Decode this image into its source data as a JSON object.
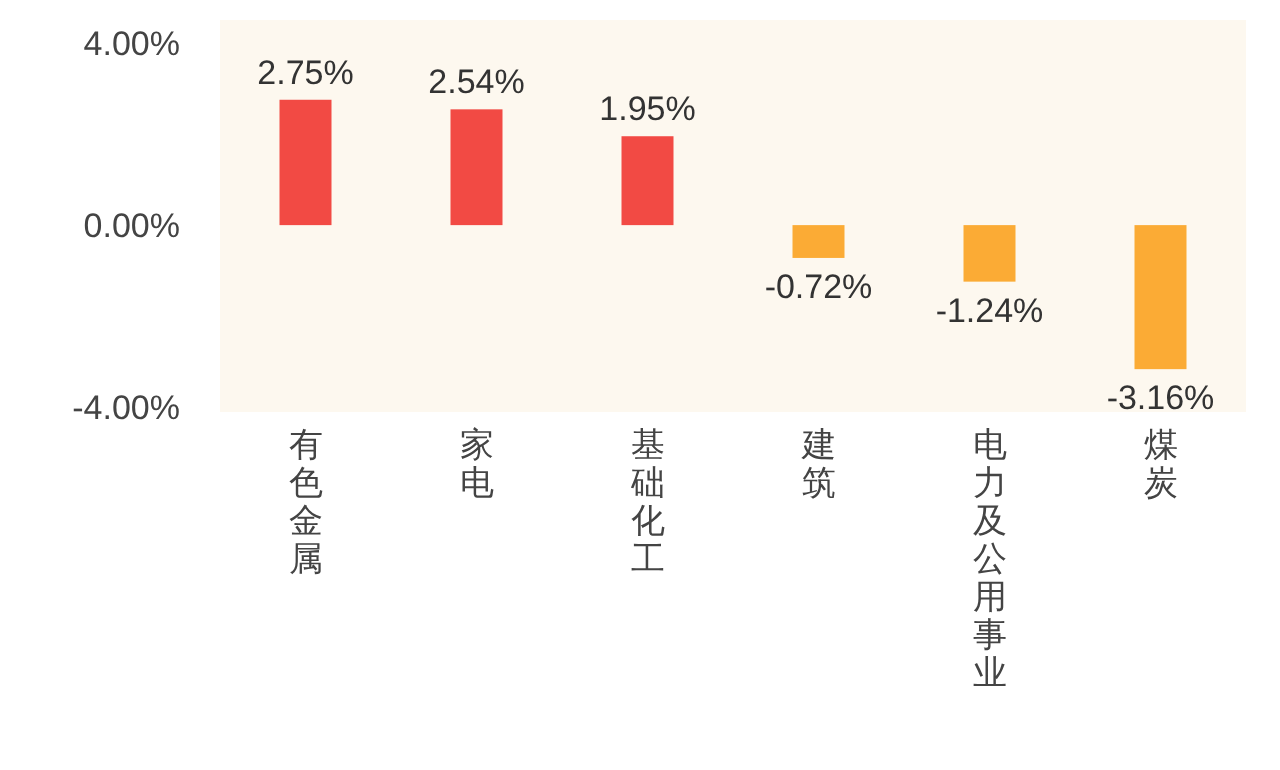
{
  "chart_data": {
    "type": "bar",
    "categories": [
      "有色金属",
      "家电",
      "基础化工",
      "建筑",
      "电力及公用事业",
      "煤炭"
    ],
    "values": [
      2.75,
      2.54,
      1.95,
      -0.72,
      -1.24,
      -3.16
    ],
    "colors": [
      "#f24a44",
      "#f24a44",
      "#f24a44",
      "#fbab35",
      "#fbab35",
      "#fbab35"
    ],
    "value_labels": [
      "2.75%",
      "2.54%",
      "1.95%",
      "-0.72%",
      "-1.24%",
      "-3.16%"
    ],
    "ylim": [
      -4.1,
      4.5
    ],
    "yticks": [
      {
        "value": 4,
        "label": "4.00%"
      },
      {
        "value": 0,
        "label": "0.00%"
      },
      {
        "value": -4,
        "label": "-4.00%"
      }
    ]
  }
}
